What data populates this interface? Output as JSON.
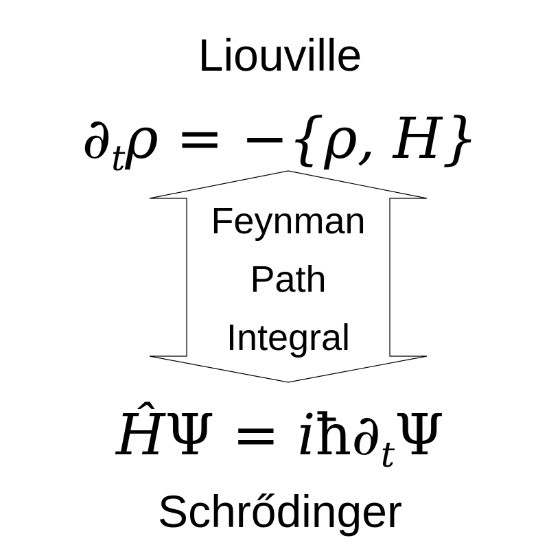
{
  "diagram": {
    "top_title": "Liouville",
    "bottom_title": "Schrődinger",
    "top_equation": {
      "partial": "∂",
      "sub": "t",
      "rest": "ρ = −{ρ, H}"
    },
    "bottom_equation": {
      "lhs": "Ĥ",
      "psi1": "Ψ",
      "eq": " = ",
      "i": "i",
      "hbar": "ħ",
      "partial": "∂",
      "sub": "t",
      "psi2": "Ψ"
    },
    "arrow_label_lines": [
      "Feynman",
      "Path",
      "Integral"
    ],
    "colors": {
      "text": "#000000",
      "arrow_stroke": "#000000",
      "background": "#ffffff"
    }
  }
}
